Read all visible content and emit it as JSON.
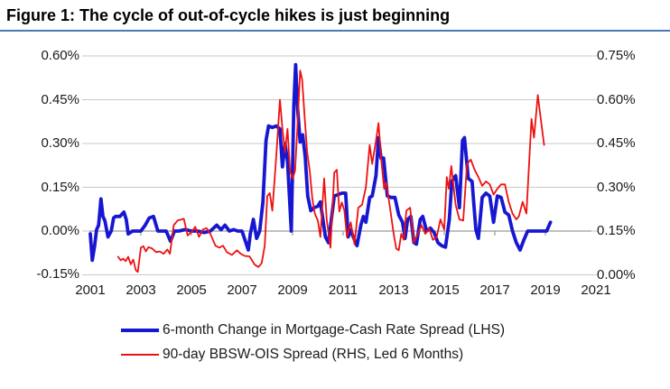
{
  "title": "Figure 1: The cycle of out-of-cycle hikes is just beginning",
  "colors": {
    "blue_series": "#1717d1",
    "red_series": "#ee1111",
    "gridline": "#c9c9c9",
    "zero_axis": "#9a9a9a",
    "title_rule": "#4a7ab5",
    "text": "#1a1a1a"
  },
  "chart_data": {
    "type": "line",
    "title": "Figure 1: The cycle of out-of-cycle hikes is just beginning",
    "grid": "horizontal-only",
    "legend_position": "bottom",
    "x_axis": {
      "range": [
        2000.75,
        2021.25
      ],
      "tick_years": [
        2001,
        2003,
        2005,
        2007,
        2009,
        2011,
        2013,
        2015,
        2017,
        2019,
        2021
      ],
      "tick_labels": [
        "2001",
        "2003",
        "2005",
        "2007",
        "2009",
        "2011",
        "2013",
        "2015",
        "2017",
        "2019",
        "2021"
      ]
    },
    "left_axis": {
      "range": [
        -0.15,
        0.6
      ],
      "ticks": [
        {
          "label": "0.60%",
          "value": 0.6
        },
        {
          "label": "0.45%",
          "value": 0.45
        },
        {
          "label": "0.30%",
          "value": 0.3
        },
        {
          "label": "0.15%",
          "value": 0.15
        },
        {
          "label": "0.00%",
          "value": 0.0
        },
        {
          "label": "-0.15%",
          "value": -0.15
        }
      ]
    },
    "right_axis": {
      "range": [
        0.0,
        0.75
      ],
      "ticks": [
        {
          "label": "0.75%",
          "value": 0.75
        },
        {
          "label": "0.60%",
          "value": 0.6
        },
        {
          "label": "0.45%",
          "value": 0.45
        },
        {
          "label": "0.30%",
          "value": 0.3
        },
        {
          "label": "0.15%",
          "value": 0.15
        },
        {
          "label": "0.00%",
          "value": 0.0
        }
      ]
    },
    "series": [
      {
        "name": "6-month Change in Mortgage-Cash Rate Spread (LHS)",
        "axis": "left",
        "color": "#1717d1",
        "stroke_width": 3.8,
        "points": [
          [
            2001.0,
            -0.01
          ],
          [
            2001.08,
            -0.1
          ],
          [
            2001.17,
            -0.05
          ],
          [
            2001.25,
            0.005
          ],
          [
            2001.33,
            0.02
          ],
          [
            2001.42,
            0.11
          ],
          [
            2001.5,
            0.05
          ],
          [
            2001.58,
            0.035
          ],
          [
            2001.7,
            -0.02
          ],
          [
            2001.83,
            0.0
          ],
          [
            2001.92,
            0.045
          ],
          [
            2002.0,
            0.05
          ],
          [
            2002.17,
            0.05
          ],
          [
            2002.33,
            0.065
          ],
          [
            2002.42,
            0.04
          ],
          [
            2002.5,
            -0.01
          ],
          [
            2002.67,
            0.0
          ],
          [
            2002.83,
            0.0
          ],
          [
            2003.0,
            0.0
          ],
          [
            2003.17,
            0.02
          ],
          [
            2003.33,
            0.045
          ],
          [
            2003.5,
            0.05
          ],
          [
            2003.67,
            0.0
          ],
          [
            2003.83,
            0.0
          ],
          [
            2004.0,
            0.0
          ],
          [
            2004.17,
            -0.035
          ],
          [
            2004.33,
            0.0
          ],
          [
            2004.5,
            0.0
          ],
          [
            2004.75,
            0.005
          ],
          [
            2005.0,
            0.0
          ],
          [
            2005.25,
            0.0
          ],
          [
            2005.5,
            -0.005
          ],
          [
            2005.75,
            0.0
          ],
          [
            2006.0,
            0.02
          ],
          [
            2006.17,
            0.005
          ],
          [
            2006.33,
            0.02
          ],
          [
            2006.5,
            0.0
          ],
          [
            2006.67,
            0.005
          ],
          [
            2006.83,
            0.0
          ],
          [
            2007.0,
            0.0
          ],
          [
            2007.25,
            -0.065
          ],
          [
            2007.33,
            -0.01
          ],
          [
            2007.45,
            0.04
          ],
          [
            2007.58,
            -0.025
          ],
          [
            2007.7,
            0.0
          ],
          [
            2007.83,
            0.1
          ],
          [
            2007.95,
            0.31
          ],
          [
            2008.05,
            0.36
          ],
          [
            2008.2,
            0.355
          ],
          [
            2008.35,
            0.36
          ],
          [
            2008.5,
            0.35
          ],
          [
            2008.6,
            0.22
          ],
          [
            2008.7,
            0.3
          ],
          [
            2008.8,
            0.24
          ],
          [
            2008.95,
            0.0
          ],
          [
            2009.05,
            0.43
          ],
          [
            2009.12,
            0.57
          ],
          [
            2009.2,
            0.42
          ],
          [
            2009.3,
            0.305
          ],
          [
            2009.4,
            0.33
          ],
          [
            2009.5,
            0.255
          ],
          [
            2009.6,
            0.12
          ],
          [
            2009.72,
            0.07
          ],
          [
            2009.85,
            0.08
          ],
          [
            2010.0,
            0.085
          ],
          [
            2010.1,
            0.1
          ],
          [
            2010.3,
            -0.02
          ],
          [
            2010.42,
            -0.04
          ],
          [
            2010.55,
            0.05
          ],
          [
            2010.65,
            0.12
          ],
          [
            2010.8,
            0.125
          ],
          [
            2010.95,
            0.13
          ],
          [
            2011.1,
            0.13
          ],
          [
            2011.2,
            -0.02
          ],
          [
            2011.3,
            0.005
          ],
          [
            2011.4,
            -0.02
          ],
          [
            2011.55,
            -0.05
          ],
          [
            2011.7,
            0.02
          ],
          [
            2011.8,
            0.05
          ],
          [
            2011.9,
            0.03
          ],
          [
            2012.05,
            0.115
          ],
          [
            2012.15,
            0.12
          ],
          [
            2012.3,
            0.19
          ],
          [
            2012.4,
            0.32
          ],
          [
            2012.5,
            0.25
          ],
          [
            2012.6,
            0.25
          ],
          [
            2012.75,
            0.12
          ],
          [
            2012.9,
            0.115
          ],
          [
            2013.05,
            0.115
          ],
          [
            2013.2,
            0.055
          ],
          [
            2013.35,
            0.03
          ],
          [
            2013.45,
            -0.025
          ],
          [
            2013.55,
            0.04
          ],
          [
            2013.68,
            0.05
          ],
          [
            2013.8,
            -0.04
          ],
          [
            2013.9,
            -0.045
          ],
          [
            2014.05,
            0.04
          ],
          [
            2014.15,
            0.05
          ],
          [
            2014.3,
            0.0
          ],
          [
            2014.45,
            0.01
          ],
          [
            2014.6,
            -0.005
          ],
          [
            2014.75,
            -0.04
          ],
          [
            2014.9,
            -0.05
          ],
          [
            2015.05,
            -0.055
          ],
          [
            2015.2,
            0.04
          ],
          [
            2015.3,
            0.17
          ],
          [
            2015.45,
            0.19
          ],
          [
            2015.6,
            0.08
          ],
          [
            2015.72,
            0.31
          ],
          [
            2015.8,
            0.32
          ],
          [
            2015.95,
            0.18
          ],
          [
            2016.1,
            0.17
          ],
          [
            2016.25,
            0.005
          ],
          [
            2016.35,
            -0.025
          ],
          [
            2016.5,
            0.115
          ],
          [
            2016.65,
            0.13
          ],
          [
            2016.8,
            0.12
          ],
          [
            2016.95,
            0.03
          ],
          [
            2017.1,
            0.12
          ],
          [
            2017.25,
            0.115
          ],
          [
            2017.4,
            0.065
          ],
          [
            2017.55,
            0.055
          ],
          [
            2017.7,
            0.0
          ],
          [
            2017.85,
            -0.04
          ],
          [
            2018.0,
            -0.065
          ],
          [
            2018.15,
            -0.03
          ],
          [
            2018.3,
            0.0
          ],
          [
            2018.6,
            0.0
          ],
          [
            2018.9,
            0.0
          ],
          [
            2019.05,
            0.0
          ],
          [
            2019.2,
            0.03
          ]
        ]
      },
      {
        "name": "90-day BBSW-OIS Spread (RHS, Led 6 Months)",
        "axis": "right",
        "color": "#ee1111",
        "stroke_width": 1.8,
        "points": [
          [
            2002.1,
            0.062
          ],
          [
            2002.2,
            0.05
          ],
          [
            2002.3,
            0.055
          ],
          [
            2002.4,
            0.047
          ],
          [
            2002.5,
            0.062
          ],
          [
            2002.6,
            0.036
          ],
          [
            2002.7,
            0.052
          ],
          [
            2002.8,
            0.016
          ],
          [
            2002.88,
            0.01
          ],
          [
            2003.0,
            0.093
          ],
          [
            2003.1,
            0.098
          ],
          [
            2003.2,
            0.08
          ],
          [
            2003.3,
            0.095
          ],
          [
            2003.45,
            0.09
          ],
          [
            2003.6,
            0.078
          ],
          [
            2003.75,
            0.08
          ],
          [
            2003.9,
            0.072
          ],
          [
            2004.05,
            0.087
          ],
          [
            2004.15,
            0.072
          ],
          [
            2004.3,
            0.17
          ],
          [
            2004.45,
            0.186
          ],
          [
            2004.7,
            0.192
          ],
          [
            2004.85,
            0.135
          ],
          [
            2005.0,
            0.146
          ],
          [
            2005.15,
            0.165
          ],
          [
            2005.3,
            0.13
          ],
          [
            2005.45,
            0.155
          ],
          [
            2005.6,
            0.16
          ],
          [
            2005.75,
            0.14
          ],
          [
            2005.95,
            0.1
          ],
          [
            2006.1,
            0.093
          ],
          [
            2006.25,
            0.1
          ],
          [
            2006.4,
            0.078
          ],
          [
            2006.6,
            0.068
          ],
          [
            2006.8,
            0.084
          ],
          [
            2006.95,
            0.072
          ],
          [
            2007.1,
            0.065
          ],
          [
            2007.3,
            0.063
          ],
          [
            2007.5,
            0.035
          ],
          [
            2007.65,
            0.027
          ],
          [
            2007.78,
            0.04
          ],
          [
            2007.9,
            0.1
          ],
          [
            2008.0,
            0.27
          ],
          [
            2008.1,
            0.28
          ],
          [
            2008.2,
            0.22
          ],
          [
            2008.35,
            0.4
          ],
          [
            2008.5,
            0.6
          ],
          [
            2008.6,
            0.5
          ],
          [
            2008.7,
            0.42
          ],
          [
            2008.8,
            0.5
          ],
          [
            2008.9,
            0.357
          ],
          [
            2009.0,
            0.33
          ],
          [
            2009.1,
            0.357
          ],
          [
            2009.2,
            0.52
          ],
          [
            2009.3,
            0.7
          ],
          [
            2009.38,
            0.67
          ],
          [
            2009.48,
            0.54
          ],
          [
            2009.58,
            0.42
          ],
          [
            2009.68,
            0.357
          ],
          [
            2009.78,
            0.264
          ],
          [
            2009.88,
            0.21
          ],
          [
            2010.0,
            0.186
          ],
          [
            2010.1,
            0.13
          ],
          [
            2010.25,
            0.33
          ],
          [
            2010.35,
            0.19
          ],
          [
            2010.5,
            0.093
          ],
          [
            2010.65,
            0.35
          ],
          [
            2010.75,
            0.36
          ],
          [
            2010.85,
            0.217
          ],
          [
            2010.95,
            0.248
          ],
          [
            2011.05,
            0.22
          ],
          [
            2011.15,
            0.13
          ],
          [
            2011.3,
            0.18
          ],
          [
            2011.45,
            0.105
          ],
          [
            2011.6,
            0.23
          ],
          [
            2011.75,
            0.24
          ],
          [
            2011.9,
            0.3
          ],
          [
            2012.05,
            0.445
          ],
          [
            2012.15,
            0.38
          ],
          [
            2012.3,
            0.46
          ],
          [
            2012.4,
            0.52
          ],
          [
            2012.5,
            0.4
          ],
          [
            2012.62,
            0.295
          ],
          [
            2012.7,
            0.317
          ],
          [
            2012.85,
            0.233
          ],
          [
            2013.0,
            0.14
          ],
          [
            2013.1,
            0.09
          ],
          [
            2013.2,
            0.084
          ],
          [
            2013.3,
            0.14
          ],
          [
            2013.4,
            0.12
          ],
          [
            2013.5,
            0.22
          ],
          [
            2013.65,
            0.23
          ],
          [
            2013.8,
            0.11
          ],
          [
            2013.95,
            0.14
          ],
          [
            2014.1,
            0.17
          ],
          [
            2014.25,
            0.14
          ],
          [
            2014.4,
            0.16
          ],
          [
            2014.55,
            0.12
          ],
          [
            2014.7,
            0.13
          ],
          [
            2014.85,
            0.19
          ],
          [
            2015.0,
            0.155
          ],
          [
            2015.1,
            0.335
          ],
          [
            2015.18,
            0.295
          ],
          [
            2015.28,
            0.373
          ],
          [
            2015.45,
            0.24
          ],
          [
            2015.6,
            0.19
          ],
          [
            2015.75,
            0.186
          ],
          [
            2015.9,
            0.38
          ],
          [
            2016.05,
            0.395
          ],
          [
            2016.2,
            0.36
          ],
          [
            2016.35,
            0.335
          ],
          [
            2016.5,
            0.305
          ],
          [
            2016.65,
            0.32
          ],
          [
            2016.8,
            0.31
          ],
          [
            2016.95,
            0.275
          ],
          [
            2017.1,
            0.295
          ],
          [
            2017.25,
            0.31
          ],
          [
            2017.4,
            0.31
          ],
          [
            2017.55,
            0.25
          ],
          [
            2017.7,
            0.21
          ],
          [
            2017.85,
            0.19
          ],
          [
            2017.95,
            0.2
          ],
          [
            2018.1,
            0.25
          ],
          [
            2018.25,
            0.21
          ],
          [
            2018.45,
            0.534
          ],
          [
            2018.55,
            0.47
          ],
          [
            2018.7,
            0.616
          ],
          [
            2018.85,
            0.512
          ],
          [
            2018.95,
            0.445
          ]
        ]
      }
    ]
  }
}
